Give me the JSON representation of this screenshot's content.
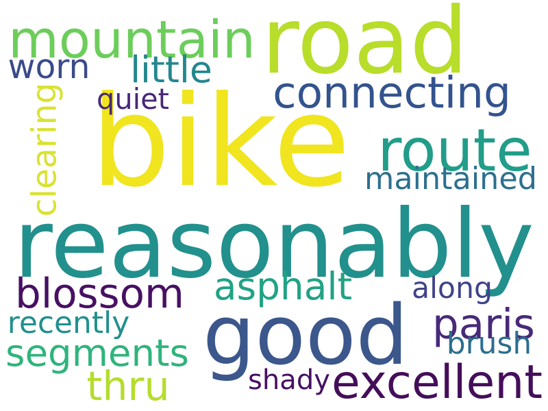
{
  "words": [
    {
      "text": "bike",
      "color": "#f0e51f"
    },
    {
      "text": "reasonably",
      "color": "#22908c"
    },
    {
      "text": "good",
      "color": "#3b578c"
    },
    {
      "text": "road",
      "color": "#b8dd2a"
    },
    {
      "text": "mountain",
      "color": "#6ccd5b"
    },
    {
      "text": "route",
      "color": "#219d89"
    },
    {
      "text": "connecting",
      "color": "#33538e"
    },
    {
      "text": "little",
      "color": "#24878e"
    },
    {
      "text": "worn",
      "color": "#3a4a8a"
    },
    {
      "text": "quiet",
      "color": "#482878"
    },
    {
      "text": "clearing",
      "color": "#d9e232"
    },
    {
      "text": "maintained",
      "color": "#2c6f8e"
    },
    {
      "text": "blossom",
      "color": "#471063"
    },
    {
      "text": "asphalt",
      "color": "#21a285"
    },
    {
      "text": "paris",
      "color": "#482a78"
    },
    {
      "text": "along",
      "color": "#404388"
    },
    {
      "text": "recently",
      "color": "#21908d"
    },
    {
      "text": "segments",
      "color": "#2fb47c"
    },
    {
      "text": "brush",
      "color": "#2b6e8e"
    },
    {
      "text": "thru",
      "color": "#b4dd2c"
    },
    {
      "text": "excellent",
      "color": "#440e5a"
    },
    {
      "text": "shady",
      "color": "#470f62"
    }
  ]
}
